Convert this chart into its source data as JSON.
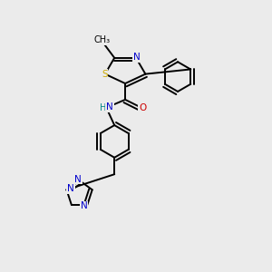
{
  "bg_color": "#ebebeb",
  "atom_colors": {
    "C": "#000000",
    "N": "#0000cc",
    "O": "#cc0000",
    "S": "#ccaa00",
    "H": "#008888"
  },
  "figsize": [
    3.0,
    3.0
  ],
  "dpi": 100,
  "lw": 1.4,
  "fs": 7.5
}
